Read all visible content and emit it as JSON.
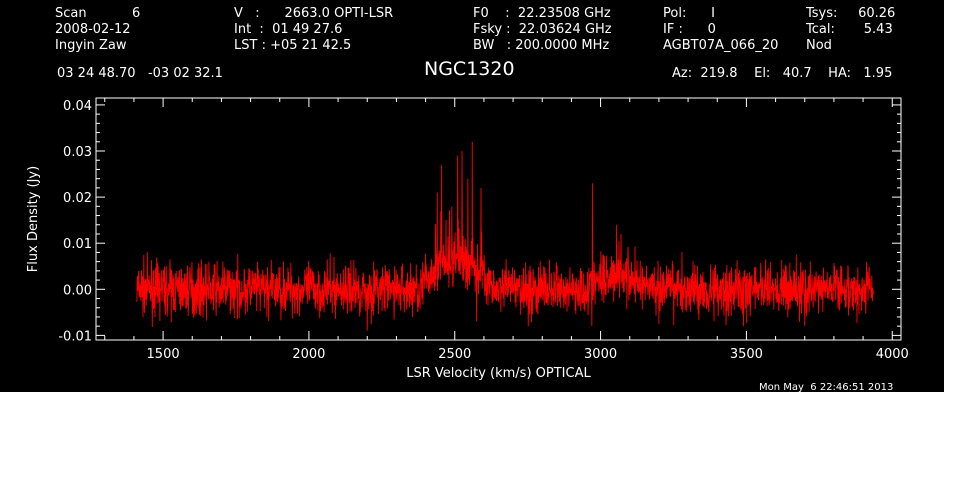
{
  "header": {
    "col1": [
      "Scan           6",
      "2008-02-12",
      "Ingyin Zaw"
    ],
    "col2": [
      "V   :      2663.0 OPTI-LSR",
      "Int  :  01 49 27.6",
      "LST : +05 21 42.5"
    ],
    "col3": [
      "F0    :  22.23508 GHz",
      "Fsky :  22.03624 GHz",
      "BW   : 200.0000 MHz"
    ],
    "col4": [
      "Pol:      I",
      "IF :      0",
      "AGBT07A_066_20"
    ],
    "col5": [
      "Tsys:     60.26",
      "Tcal:       5.43",
      "Nod"
    ],
    "coords": "03 24 48.70   -03 02 32.1",
    "source": "NGC1320",
    "azelha": "Az:  219.8    El:   40.7    HA:   1.95",
    "timestamp": "Mon May  6 22:46:51 2013"
  },
  "colors": {
    "background": "#000000",
    "foreground": "#ffffff",
    "trace": "#ff0000"
  },
  "chart_data": {
    "type": "line",
    "xlabel": "LSR Velocity (km/s) OPTICAL",
    "ylabel": "Flux Density (Jy)",
    "xlim": [
      1270,
      4030
    ],
    "ylim": [
      -0.011,
      0.0415
    ],
    "xticks": [
      1500,
      2000,
      2500,
      3000,
      3500,
      4000
    ],
    "yticks": [
      -0.01,
      0.0,
      0.01,
      0.02,
      0.03,
      0.04
    ],
    "xtick_labels": [
      "1500",
      "2000",
      "2500",
      "3000",
      "3500",
      "4000"
    ],
    "ytick_labels": [
      "-0.01",
      "0.00",
      "0.01",
      "0.02",
      "0.03",
      "0.04"
    ],
    "series": [
      {
        "x_range": [
          1410,
          3935
        ],
        "noise_rms": 0.0028,
        "baseline": [
          {
            "x": 1410,
            "y": 0.0
          },
          {
            "x": 2380,
            "y": 0.0
          },
          {
            "x": 2440,
            "y": 0.005
          },
          {
            "x": 2500,
            "y": 0.006
          },
          {
            "x": 2560,
            "y": 0.006
          },
          {
            "x": 2600,
            "y": 0.003
          },
          {
            "x": 2640,
            "y": 0.0
          },
          {
            "x": 2950,
            "y": 0.0
          },
          {
            "x": 3000,
            "y": 0.002
          },
          {
            "x": 3060,
            "y": 0.004
          },
          {
            "x": 3120,
            "y": 0.002
          },
          {
            "x": 3200,
            "y": 0.0
          },
          {
            "x": 3935,
            "y": 0.0
          }
        ],
        "peaks": [
          {
            "x": 2440,
            "y": 0.021
          },
          {
            "x": 2455,
            "y": 0.027
          },
          {
            "x": 2470,
            "y": 0.015
          },
          {
            "x": 2490,
            "y": 0.018
          },
          {
            "x": 2510,
            "y": 0.029
          },
          {
            "x": 2525,
            "y": 0.03
          },
          {
            "x": 2545,
            "y": 0.024
          },
          {
            "x": 2560,
            "y": 0.032
          },
          {
            "x": 2575,
            "y": 0.028
          },
          {
            "x": 2590,
            "y": 0.022
          },
          {
            "x": 2972,
            "y": 0.023
          },
          {
            "x": 3055,
            "y": 0.014
          },
          {
            "x": 3070,
            "y": 0.012
          }
        ],
        "troughs": [
          {
            "x": 2200,
            "y": -0.009
          },
          {
            "x": 2575,
            "y": -0.007
          },
          {
            "x": 2970,
            "y": -0.008
          },
          {
            "x": 3490,
            "y": -0.008
          },
          {
            "x": 3700,
            "y": -0.008
          }
        ]
      }
    ]
  }
}
